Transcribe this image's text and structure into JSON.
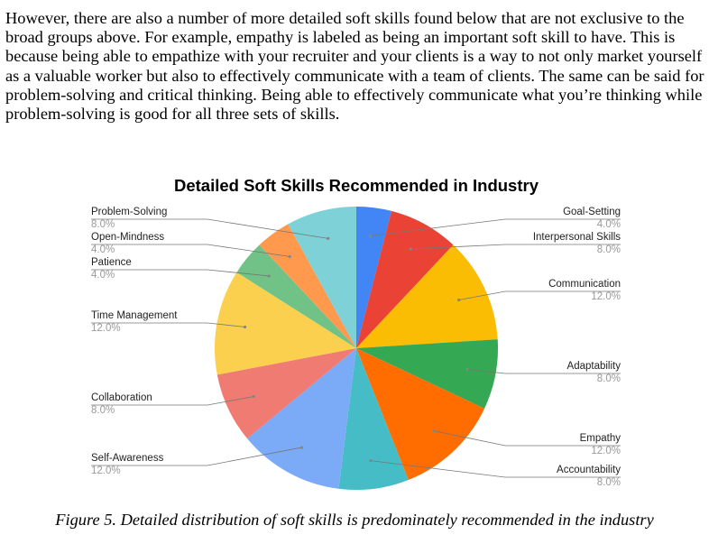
{
  "paragraph": "However, there are also a number of more detailed soft skills found below that are not exclusive to the broad groups above. For example, empathy is labeled as being an important soft skill to have. This is because being able to empathize with your recruiter and your clients is a way to not only market yourself as a valuable worker but also to effectively communicate with a team of clients. The same can be said for problem-solving and critical thinking. Being able to effectively communicate what you’re thinking while problem-solving is good for all three sets of skills.",
  "caption": "Figure 5. Detailed distribution of soft skills is predominately recommended in the industry",
  "chart_data": {
    "type": "pie",
    "title": "Detailed Soft Skills Recommended in Industry",
    "slices": [
      {
        "label": "Goal-Setting",
        "value": 4.0,
        "pct": "4.0%",
        "color": "#4285f4",
        "side": "right"
      },
      {
        "label": "Interpersonal Skills",
        "value": 8.0,
        "pct": "8.0%",
        "color": "#ea4335",
        "side": "right"
      },
      {
        "label": "Communication",
        "value": 12.0,
        "pct": "12.0%",
        "color": "#fbbc04",
        "side": "right"
      },
      {
        "label": "Adaptability",
        "value": 8.0,
        "pct": "8.0%",
        "color": "#34a853",
        "side": "right"
      },
      {
        "label": "Empathy",
        "value": 12.0,
        "pct": "12.0%",
        "color": "#ff6d01",
        "side": "right"
      },
      {
        "label": "Accountability",
        "value": 8.0,
        "pct": "8.0%",
        "color": "#46bdc6",
        "side": "right"
      },
      {
        "label": "Self-Awareness",
        "value": 12.0,
        "pct": "12.0%",
        "color": "#7baaf7",
        "side": "left"
      },
      {
        "label": "Collaboration",
        "value": 8.0,
        "pct": "8.0%",
        "color": "#f07b72",
        "side": "left"
      },
      {
        "label": "Time Management",
        "value": 12.0,
        "pct": "12.0%",
        "color": "#fcd04f",
        "side": "left"
      },
      {
        "label": "Patience",
        "value": 4.0,
        "pct": "4.0%",
        "color": "#71c287",
        "side": "left"
      },
      {
        "label": "Open-Mindness",
        "value": 4.0,
        "pct": "4.0%",
        "color": "#ff994d",
        "side": "left"
      },
      {
        "label": "Problem-Solving",
        "value": 8.0,
        "pct": "8.0%",
        "color": "#7ed1d7",
        "side": "left"
      }
    ]
  }
}
